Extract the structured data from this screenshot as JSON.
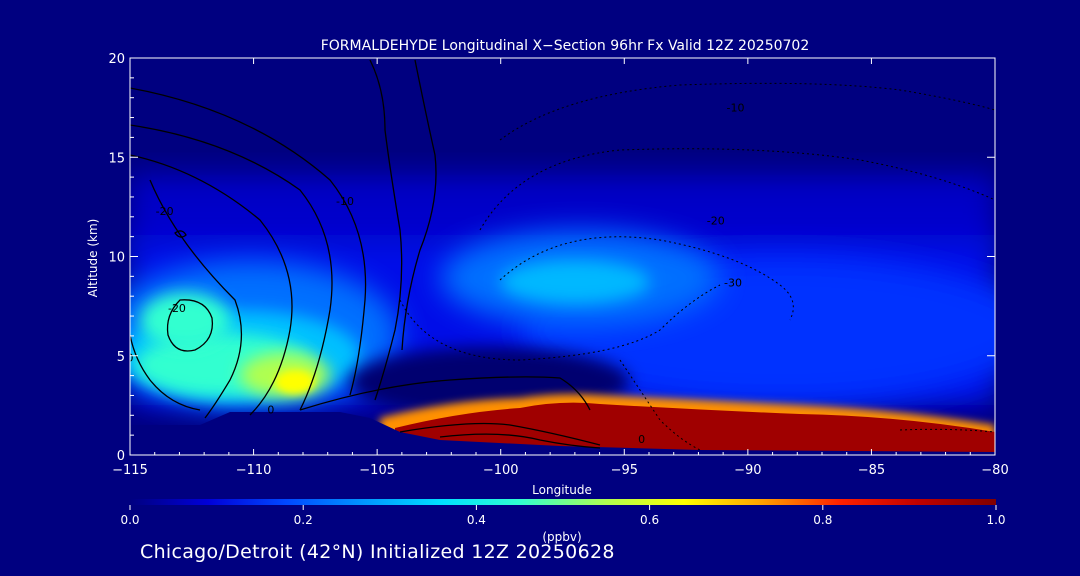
{
  "chart_data": {
    "type": "heatmap",
    "title": "FORMALDEHYDE Longitudinal X−Section 96hr  Fx Valid 12Z 20250702",
    "xlabel": "Longitude",
    "ylabel": "Altitude (km)",
    "xlim": [
      -115,
      -80
    ],
    "ylim": [
      0,
      20
    ],
    "x_ticks": [
      -115,
      -110,
      -105,
      -100,
      -95,
      -90,
      -85,
      -80
    ],
    "x_tick_labels": [
      "−115",
      "−110",
      "−105",
      "−100",
      "−95",
      "−90",
      "−85",
      "−80"
    ],
    "y_ticks": [
      0,
      5,
      10,
      15,
      20
    ],
    "colorbar": {
      "label": "(ppbv)",
      "range": [
        0.0,
        1.0
      ],
      "tick_values": [
        0.0,
        0.2,
        0.4,
        0.6,
        0.8,
        1.0
      ],
      "tick_labels": [
        "0.0",
        "0.2",
        "0.4",
        "0.6",
        "0.8",
        "1.0"
      ],
      "colors": [
        "#000080",
        "#0000d8",
        "#0048ff",
        "#0096ff",
        "#00e0ff",
        "#30ffd0",
        "#b0ff50",
        "#ffff00",
        "#ffa000",
        "#ff2000",
        "#c00000",
        "#800000"
      ]
    },
    "plumes": [
      {
        "lon": -108.5,
        "alt": 3.5,
        "value": 0.55
      },
      {
        "lon": -112.0,
        "alt": 6.0,
        "value": 0.42
      },
      {
        "lon": -96.5,
        "alt": 9.0,
        "value": 0.38
      },
      {
        "lon_range": [
          -104,
          -80
        ],
        "alt_range": [
          0.3,
          2.5
        ],
        "value": 1.0
      }
    ],
    "contour_labels": [
      {
        "text": "-10",
        "lon": -90.5,
        "alt": 17.3
      },
      {
        "text": "-20",
        "lon": -91.3,
        "alt": 11.6
      },
      {
        "text": "-30",
        "lon": -90.6,
        "alt": 8.5
      },
      {
        "text": "-10",
        "lon": -106.3,
        "alt": 12.6
      },
      {
        "text": "-20",
        "lon": -113.6,
        "alt": 12.1
      },
      {
        "text": "-20",
        "lon": -113.1,
        "alt": 7.2
      },
      {
        "text": "0",
        "lon": -115.0,
        "alt": 4.7
      },
      {
        "text": "0",
        "lon": -109.3,
        "alt": 2.1
      },
      {
        "text": "0",
        "lon": -94.3,
        "alt": 0.6
      }
    ]
  },
  "colors": {
    "background": "#000080",
    "text": "#ffffff",
    "frame": "#ffffff",
    "contour": "#000000"
  },
  "footer": {
    "text": "Chicago/Detroit (42°N) Initialized 12Z 20250628"
  }
}
